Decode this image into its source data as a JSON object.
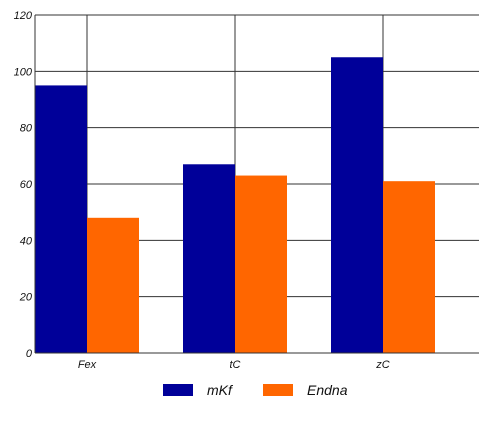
{
  "chart_data": {
    "type": "bar",
    "categories": [
      "Fex",
      "tC",
      "zC"
    ],
    "series": [
      {
        "name": "mKf",
        "values": [
          95,
          67,
          105
        ],
        "color": "#000099"
      },
      {
        "name": "Endna",
        "values": [
          48,
          63,
          61
        ],
        "color": "#ff6600"
      }
    ],
    "ylim": [
      0,
      120
    ],
    "yticks": [
      0,
      20,
      40,
      60,
      80,
      100,
      120
    ],
    "grid": true,
    "legend_position": "bottom"
  }
}
